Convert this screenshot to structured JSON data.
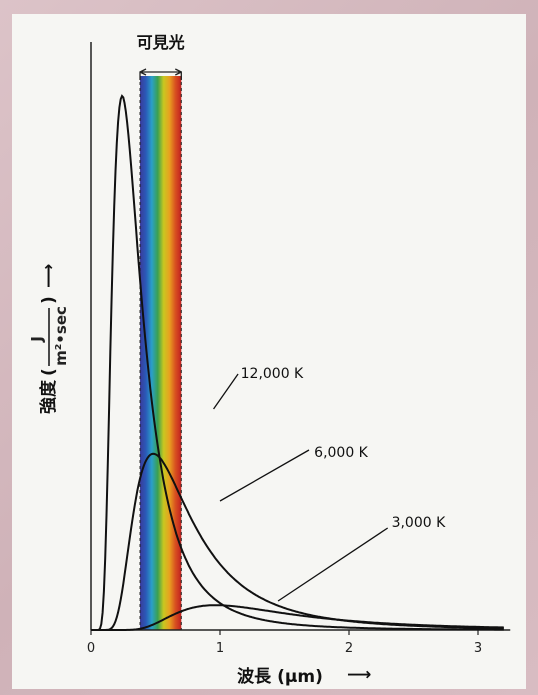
{
  "chart_data": {
    "type": "line",
    "xlabel": "波長 (μm)",
    "ylabel": "強度",
    "ylabel_unit_numerator": "J",
    "ylabel_unit_denominator": "m²•sec",
    "ylabel_arrow": "⟶",
    "xlabel_arrow": "⟶",
    "visible_band_label": "可見光",
    "visible_band_range": [
      0.38,
      0.7
    ],
    "x_ticks": [
      "0",
      "1",
      "2",
      "3"
    ],
    "xlim": [
      0,
      3.2
    ],
    "series": [
      {
        "name": "12,000 K",
        "temperature_k": 12000
      },
      {
        "name": "6,000 K",
        "temperature_k": 6000
      },
      {
        "name": "3,000 K",
        "temperature_k": 3000
      }
    ],
    "colors": {
      "spectrum": [
        "#3a3a9a",
        "#2a5ab8",
        "#2aa0c8",
        "#3aa050",
        "#c8c820",
        "#e8a020",
        "#d85020",
        "#c02020"
      ],
      "curve": "#111111"
    }
  }
}
